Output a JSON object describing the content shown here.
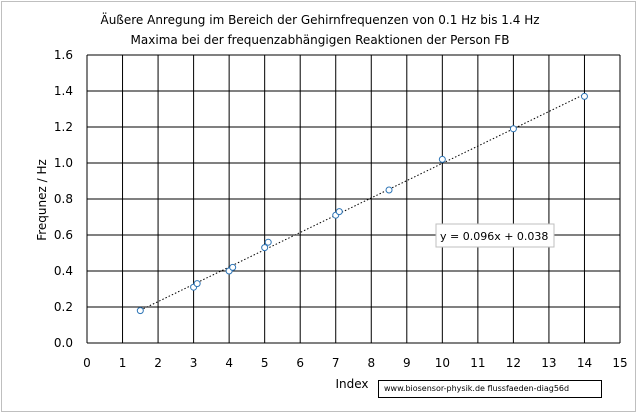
{
  "chart_data": {
    "type": "scatter",
    "title": "Äußere Anregung im Bereich der Gehirnfrequenzen von 0.1 Hz bis 1.4 Hz",
    "subtitle": "Maxima bei der frequenzabhängigen Reaktionen der Person FB",
    "xlabel": "Index",
    "ylabel": "Frequnez / Hz",
    "xlim": [
      0,
      15
    ],
    "ylim": [
      0,
      1.6
    ],
    "x_ticks": [
      "0",
      "1",
      "2",
      "3",
      "4",
      "5",
      "6",
      "7",
      "8",
      "9",
      "10",
      "11",
      "12",
      "13",
      "14",
      "15"
    ],
    "y_ticks": [
      "0.0",
      "0.2",
      "0.4",
      "0.6",
      "0.8",
      "1.0",
      "1.2",
      "1.4",
      "1.6"
    ],
    "grid": true,
    "series": [
      {
        "x": [
          1.5,
          3.0,
          3.1,
          4.0,
          4.1,
          5.0,
          5.1,
          7.0,
          7.1,
          8.5,
          10.0,
          12.0,
          14.0
        ],
        "y": [
          0.18,
          0.31,
          0.33,
          0.4,
          0.42,
          0.53,
          0.56,
          0.71,
          0.73,
          0.85,
          1.02,
          1.19,
          1.37
        ],
        "color": "#2e75b6"
      }
    ],
    "trendline": {
      "slope": 0.096,
      "intercept": 0.038,
      "x_from": 1.5,
      "x_to": 14.0,
      "equation": "y = 0.096x + 0.038"
    }
  },
  "source_label": "www.biosensor-physik.de  flussfaeden-diag56d"
}
